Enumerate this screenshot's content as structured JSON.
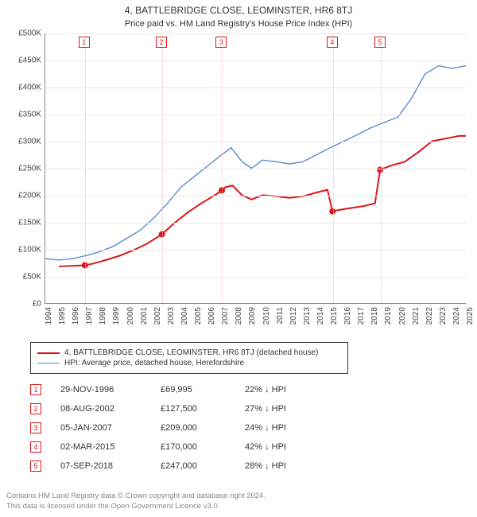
{
  "title": "4, BATTLEBRIDGE CLOSE, LEOMINSTER, HR6 8TJ",
  "subtitle": "Price paid vs. HM Land Registry's House Price Index (HPI)",
  "chart": {
    "type": "line",
    "background_color": "#ffffff",
    "grid_color": "#e8e8e8",
    "vgrid_color": "#f5c0c0",
    "axis_color": "#888888",
    "x": {
      "min": 1994,
      "max": 2025,
      "tick_step": 1,
      "label_fontsize": 10
    },
    "y": {
      "min": 0,
      "max": 500000,
      "tick_step": 50000,
      "label_prefix": "£",
      "label_suffix": "K",
      "label_div": 1000,
      "label_fontsize": 10
    },
    "series": [
      {
        "id": "property",
        "label": "4, BATTLEBRIDGE CLOSE, LEOMINSTER, HR6 8TJ (detached house)",
        "color": "#d8171a",
        "line_width": 2,
        "points": [
          [
            1995.0,
            68000
          ],
          [
            1996.9,
            69995
          ],
          [
            1997.5,
            73000
          ],
          [
            1998.5,
            80000
          ],
          [
            1999.5,
            88000
          ],
          [
            2000.5,
            98000
          ],
          [
            2001.5,
            110000
          ],
          [
            2002.6,
            127500
          ],
          [
            2003.5,
            148000
          ],
          [
            2004.5,
            168000
          ],
          [
            2005.5,
            185000
          ],
          [
            2006.5,
            200000
          ],
          [
            2007.0,
            209000
          ],
          [
            2007.3,
            215000
          ],
          [
            2007.8,
            218000
          ],
          [
            2008.5,
            200000
          ],
          [
            2009.2,
            192000
          ],
          [
            2010.0,
            200000
          ],
          [
            2011.0,
            198000
          ],
          [
            2012.0,
            195000
          ],
          [
            2013.0,
            198000
          ],
          [
            2014.0,
            205000
          ],
          [
            2014.8,
            210000
          ],
          [
            2015.17,
            170000
          ],
          [
            2015.5,
            172000
          ],
          [
            2016.5,
            176000
          ],
          [
            2017.5,
            180000
          ],
          [
            2018.3,
            185000
          ],
          [
            2018.68,
            247000
          ],
          [
            2019.5,
            255000
          ],
          [
            2020.5,
            262000
          ],
          [
            2021.5,
            280000
          ],
          [
            2022.5,
            300000
          ],
          [
            2023.5,
            305000
          ],
          [
            2024.5,
            310000
          ],
          [
            2025.0,
            310000
          ]
        ]
      },
      {
        "id": "hpi",
        "label": "HPI: Average price, detached house, Herefordshire",
        "color": "#5b8bd0",
        "line_width": 1.4,
        "points": [
          [
            1994.0,
            82000
          ],
          [
            1995.0,
            80000
          ],
          [
            1996.0,
            82000
          ],
          [
            1997.0,
            88000
          ],
          [
            1998.0,
            95000
          ],
          [
            1999.0,
            105000
          ],
          [
            2000.0,
            120000
          ],
          [
            2001.0,
            135000
          ],
          [
            2002.0,
            158000
          ],
          [
            2003.0,
            185000
          ],
          [
            2004.0,
            215000
          ],
          [
            2005.0,
            235000
          ],
          [
            2006.0,
            255000
          ],
          [
            2007.0,
            275000
          ],
          [
            2007.7,
            288000
          ],
          [
            2008.5,
            262000
          ],
          [
            2009.2,
            250000
          ],
          [
            2010.0,
            265000
          ],
          [
            2011.0,
            262000
          ],
          [
            2012.0,
            258000
          ],
          [
            2013.0,
            262000
          ],
          [
            2014.0,
            275000
          ],
          [
            2015.0,
            288000
          ],
          [
            2016.0,
            300000
          ],
          [
            2017.0,
            312000
          ],
          [
            2018.0,
            325000
          ],
          [
            2019.0,
            335000
          ],
          [
            2020.0,
            345000
          ],
          [
            2021.0,
            380000
          ],
          [
            2022.0,
            425000
          ],
          [
            2023.0,
            440000
          ],
          [
            2024.0,
            435000
          ],
          [
            2025.0,
            440000
          ]
        ]
      }
    ],
    "sale_markers": [
      {
        "n": "1",
        "x": 1996.91,
        "y": 69995
      },
      {
        "n": "2",
        "x": 2002.6,
        "y": 127500
      },
      {
        "n": "3",
        "x": 2007.01,
        "y": 209000
      },
      {
        "n": "4",
        "x": 2015.17,
        "y": 170000
      },
      {
        "n": "5",
        "x": 2018.68,
        "y": 247000
      }
    ]
  },
  "legend": {
    "rows": [
      {
        "color": "#d8171a",
        "width": 2,
        "label": "4, BATTLEBRIDGE CLOSE, LEOMINSTER, HR6 8TJ (detached house)"
      },
      {
        "color": "#5b8bd0",
        "width": 1.4,
        "label": "HPI: Average price, detached house, Herefordshire"
      }
    ]
  },
  "events": [
    {
      "n": "1",
      "date": "29-NOV-1996",
      "price": "£69,995",
      "delta": "22% ↓ HPI"
    },
    {
      "n": "2",
      "date": "08-AUG-2002",
      "price": "£127,500",
      "delta": "27% ↓ HPI"
    },
    {
      "n": "3",
      "date": "05-JAN-2007",
      "price": "£209,000",
      "delta": "24% ↓ HPI"
    },
    {
      "n": "4",
      "date": "02-MAR-2015",
      "price": "£170,000",
      "delta": "42% ↓ HPI"
    },
    {
      "n": "5",
      "date": "07-SEP-2018",
      "price": "£247,000",
      "delta": "28% ↓ HPI"
    }
  ],
  "attribution": {
    "line1": "Contains HM Land Registry data © Crown copyright and database right 2024.",
    "line2": "This data is licensed under the Open Government Licence v3.0."
  }
}
